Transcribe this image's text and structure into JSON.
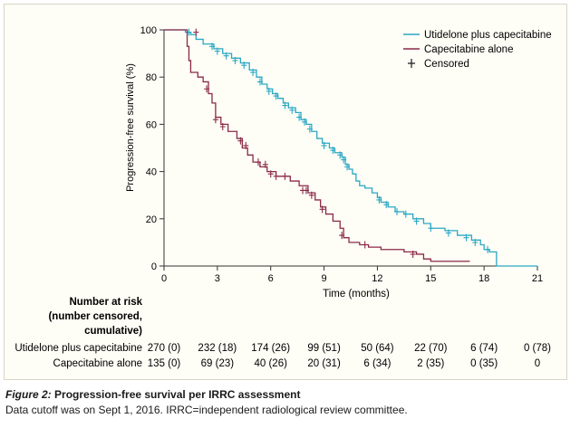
{
  "chart_data": {
    "type": "line",
    "ylabel": "Progression-free survival (%)",
    "xlabel": "Time (months)",
    "xlim": [
      0,
      21
    ],
    "ylim": [
      0,
      100
    ],
    "x_ticks": [
      0,
      3,
      6,
      9,
      12,
      15,
      18,
      21
    ],
    "y_ticks": [
      0,
      20,
      40,
      60,
      80,
      100
    ],
    "grid": false,
    "legend_position": "top-right",
    "legend_censored_label": "Censored",
    "series": [
      {
        "name": "Utidelone plus capecitabine",
        "color": "#2aa8c4",
        "steps": [
          [
            0,
            100
          ],
          [
            1.2,
            99
          ],
          [
            1.5,
            98
          ],
          [
            1.8,
            96
          ],
          [
            2.2,
            94
          ],
          [
            2.8,
            92
          ],
          [
            3.3,
            90
          ],
          [
            3.8,
            88
          ],
          [
            4.3,
            86
          ],
          [
            4.8,
            83
          ],
          [
            5.2,
            80
          ],
          [
            5.5,
            77
          ],
          [
            5.8,
            75
          ],
          [
            6.1,
            73
          ],
          [
            6.4,
            71
          ],
          [
            6.7,
            69
          ],
          [
            7.0,
            67
          ],
          [
            7.4,
            65
          ],
          [
            7.7,
            62
          ],
          [
            8.0,
            60
          ],
          [
            8.3,
            57
          ],
          [
            8.6,
            54
          ],
          [
            8.9,
            52
          ],
          [
            9.3,
            50
          ],
          [
            9.6,
            48
          ],
          [
            10.0,
            46
          ],
          [
            10.2,
            43
          ],
          [
            10.4,
            41
          ],
          [
            10.6,
            39
          ],
          [
            10.8,
            36
          ],
          [
            11.0,
            34
          ],
          [
            11.3,
            33
          ],
          [
            11.7,
            31
          ],
          [
            12.0,
            29
          ],
          [
            12.2,
            27
          ],
          [
            12.6,
            25
          ],
          [
            13.0,
            23
          ],
          [
            13.5,
            22
          ],
          [
            14.0,
            20
          ],
          [
            14.6,
            18
          ],
          [
            15.0,
            16
          ],
          [
            15.8,
            15
          ],
          [
            16.5,
            13
          ],
          [
            17.3,
            11
          ],
          [
            17.8,
            9
          ],
          [
            18.0,
            7
          ],
          [
            18.3,
            6
          ],
          [
            18.7,
            0
          ],
          [
            21.0,
            0
          ]
        ],
        "censored": [
          [
            1.4,
            99
          ],
          [
            2.7,
            93
          ],
          [
            3.0,
            91
          ],
          [
            3.5,
            89
          ],
          [
            4.0,
            87
          ],
          [
            4.5,
            85
          ],
          [
            5.0,
            82
          ],
          [
            5.4,
            78
          ],
          [
            5.9,
            74
          ],
          [
            6.3,
            72
          ],
          [
            6.8,
            68
          ],
          [
            7.2,
            66
          ],
          [
            7.6,
            63
          ],
          [
            7.9,
            61
          ],
          [
            8.2,
            58
          ],
          [
            9.0,
            51
          ],
          [
            9.5,
            49
          ],
          [
            9.9,
            47
          ],
          [
            10.1,
            45
          ],
          [
            10.3,
            42
          ],
          [
            12.1,
            28
          ],
          [
            12.5,
            26
          ],
          [
            13.1,
            23
          ],
          [
            13.6,
            22
          ],
          [
            14.2,
            19
          ],
          [
            15.0,
            16
          ],
          [
            16.0,
            14
          ],
          [
            17.0,
            12
          ],
          [
            17.5,
            10
          ],
          [
            18.2,
            7
          ]
        ]
      },
      {
        "name": "Capecitabine alone",
        "color": "#8b2a48",
        "steps": [
          [
            0,
            100
          ],
          [
            1.3,
            93
          ],
          [
            1.4,
            87
          ],
          [
            1.5,
            82
          ],
          [
            1.9,
            80
          ],
          [
            2.2,
            78
          ],
          [
            2.5,
            73
          ],
          [
            2.7,
            69
          ],
          [
            2.9,
            63
          ],
          [
            3.2,
            60
          ],
          [
            3.6,
            57
          ],
          [
            4.1,
            54
          ],
          [
            4.4,
            50
          ],
          [
            4.7,
            47
          ],
          [
            5.0,
            44
          ],
          [
            5.4,
            42
          ],
          [
            5.8,
            40
          ],
          [
            6.3,
            38
          ],
          [
            7.1,
            36
          ],
          [
            7.6,
            34
          ],
          [
            8.1,
            31
          ],
          [
            8.5,
            28
          ],
          [
            8.8,
            25
          ],
          [
            9.1,
            22
          ],
          [
            9.5,
            19
          ],
          [
            9.9,
            16
          ],
          [
            10.1,
            12
          ],
          [
            10.4,
            10
          ],
          [
            11.0,
            9
          ],
          [
            11.5,
            8
          ],
          [
            12.2,
            7
          ],
          [
            13.5,
            6
          ],
          [
            14.2,
            5
          ],
          [
            14.6,
            3
          ],
          [
            15.0,
            2
          ],
          [
            17.0,
            2
          ],
          [
            17.2,
            2
          ]
        ],
        "censored": [
          [
            1.8,
            99
          ],
          [
            2.4,
            75
          ],
          [
            2.9,
            62
          ],
          [
            3.3,
            59
          ],
          [
            4.3,
            53
          ],
          [
            4.6,
            51
          ],
          [
            5.3,
            44
          ],
          [
            5.7,
            43
          ],
          [
            6.0,
            39
          ],
          [
            6.3,
            38
          ],
          [
            6.8,
            38
          ],
          [
            7.8,
            32
          ],
          [
            8.0,
            32
          ],
          [
            8.3,
            30
          ],
          [
            8.9,
            24
          ],
          [
            10.0,
            13
          ],
          [
            11.3,
            9
          ],
          [
            14.0,
            5
          ]
        ]
      }
    ]
  },
  "risk_table": {
    "heading": [
      "Number at risk",
      "(number censored,",
      "cumulative)"
    ],
    "rows": [
      {
        "label": "Utidelone plus capecitabine",
        "values": [
          "270 (0)",
          "232 (18)",
          "174 (26)",
          "99 (51)",
          "50 (64)",
          "22 (70)",
          "6 (74)",
          "0 (78)"
        ]
      },
      {
        "label": "Capecitabine alone",
        "values": [
          "135 (0)",
          "69 (23)",
          "40 (26)",
          "20 (31)",
          "6 (34)",
          "2 (35)",
          "0 (35)",
          "0"
        ]
      }
    ]
  },
  "caption": {
    "figure_label": "Figure 2:",
    "title": "Progression-free survival per IRRC assessment",
    "note": "Data cutoff was on Sept 1, 2016. IRRC=independent radiological review committee."
  }
}
